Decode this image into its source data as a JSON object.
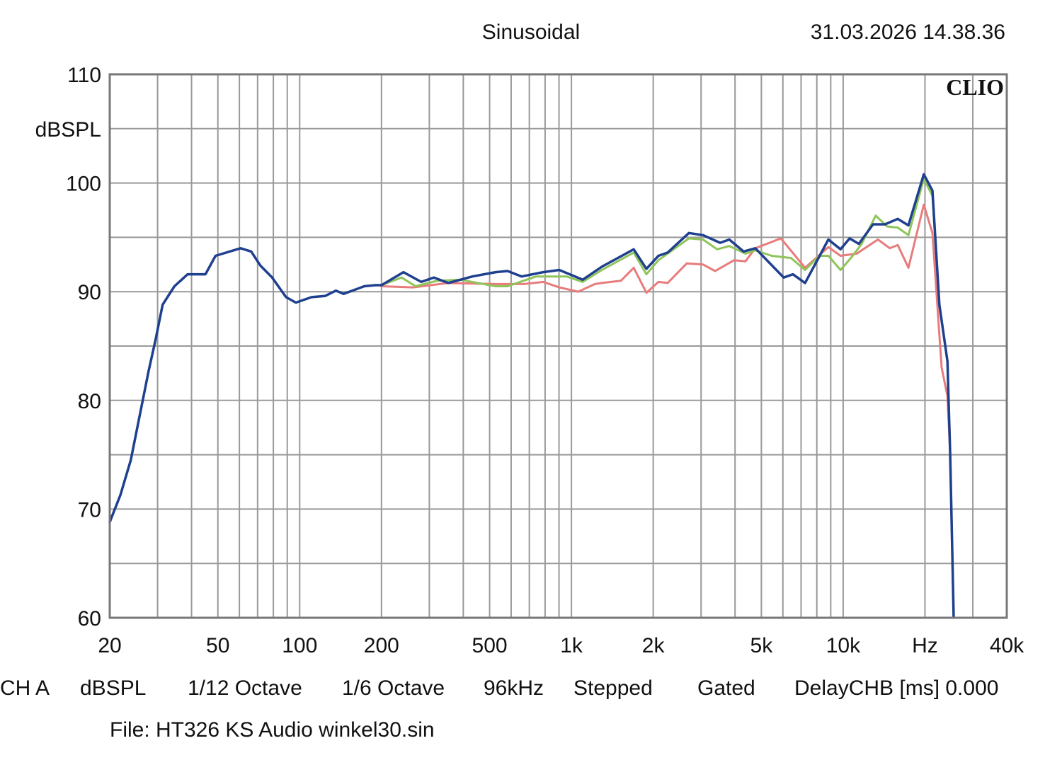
{
  "header": {
    "mode": "Sinusoidal",
    "timestamp": "31.03.2026 14.38.36",
    "logo": "CLIO"
  },
  "footer": {
    "settings": [
      "CH A",
      "dBSPL",
      "1/12 Octave",
      "1/6 Octave",
      "96kHz",
      "Stepped",
      "Gated",
      "DelayCHB [ms] 0.000"
    ],
    "file": "File: HT326 KS Audio winkel30.sin"
  },
  "chart_data": {
    "type": "line",
    "title": "",
    "xlabel": "Hz",
    "ylabel": "dBSPL",
    "xscale": "log",
    "xlim": [
      20,
      40000
    ],
    "ylim": [
      60,
      110
    ],
    "grid": true,
    "x_ticks": [
      {
        "value": 20,
        "label": "20"
      },
      {
        "value": 50,
        "label": "50"
      },
      {
        "value": 100,
        "label": "100"
      },
      {
        "value": 200,
        "label": "200"
      },
      {
        "value": 500,
        "label": "500"
      },
      {
        "value": 1000,
        "label": "1k"
      },
      {
        "value": 2000,
        "label": "2k"
      },
      {
        "value": 5000,
        "label": "5k"
      },
      {
        "value": 10000,
        "label": "10k"
      },
      {
        "value": 20000,
        "label": "Hz"
      },
      {
        "value": 40000,
        "label": "40k"
      }
    ],
    "y_ticks": [
      {
        "value": 110,
        "label": "110"
      },
      {
        "value": 105,
        "label": "dBSPL"
      },
      {
        "value": 100,
        "label": "100"
      },
      {
        "value": 90,
        "label": "90"
      },
      {
        "value": 80,
        "label": "80"
      },
      {
        "value": 70,
        "label": "70"
      },
      {
        "value": 60,
        "label": "60"
      }
    ],
    "series": [
      {
        "color": "#e87b7b",
        "points": [
          [
            200,
            90.5
          ],
          [
            261,
            90.4
          ],
          [
            352,
            90.8
          ],
          [
            526,
            90.7
          ],
          [
            668,
            90.7
          ],
          [
            787,
            90.9
          ],
          [
            902,
            90.4
          ],
          [
            1060,
            90.0
          ],
          [
            1220,
            90.7
          ],
          [
            1294,
            90.8
          ],
          [
            1520,
            91.0
          ],
          [
            1695,
            92.2
          ],
          [
            1888,
            89.9
          ],
          [
            2090,
            90.9
          ],
          [
            2260,
            90.8
          ],
          [
            2655,
            92.6
          ],
          [
            3050,
            92.5
          ],
          [
            3380,
            91.9
          ],
          [
            3970,
            92.9
          ],
          [
            4370,
            92.8
          ],
          [
            4750,
            94.0
          ],
          [
            5900,
            94.9
          ],
          [
            7240,
            92.2
          ],
          [
            8820,
            94.1
          ],
          [
            9780,
            93.3
          ],
          [
            11220,
            93.5
          ],
          [
            13420,
            94.8
          ],
          [
            14860,
            94.0
          ],
          [
            15880,
            94.3
          ],
          [
            17380,
            92.2
          ],
          [
            19800,
            98.0
          ],
          [
            21300,
            95.4
          ],
          [
            23040,
            83.0
          ],
          [
            24200,
            80.4
          ],
          [
            24760,
            75.2
          ],
          [
            25500,
            60.0
          ]
        ]
      },
      {
        "color": "#8fc45a",
        "points": [
          [
            200,
            90.6
          ],
          [
            237,
            91.3
          ],
          [
            267,
            90.5
          ],
          [
            320,
            91.0
          ],
          [
            390,
            91.1
          ],
          [
            526,
            90.5
          ],
          [
            582,
            90.5
          ],
          [
            741,
            91.4
          ],
          [
            960,
            91.4
          ],
          [
            1100,
            90.9
          ],
          [
            1294,
            92.0
          ],
          [
            1695,
            93.6
          ],
          [
            1888,
            91.6
          ],
          [
            2090,
            92.9
          ],
          [
            2705,
            94.9
          ],
          [
            3050,
            94.8
          ],
          [
            3440,
            93.9
          ],
          [
            3810,
            94.2
          ],
          [
            4370,
            93.5
          ],
          [
            4750,
            93.8
          ],
          [
            5460,
            93.3
          ],
          [
            6430,
            93.1
          ],
          [
            7240,
            92.0
          ],
          [
            8160,
            93.3
          ],
          [
            8820,
            93.3
          ],
          [
            9780,
            92.0
          ],
          [
            10760,
            93.2
          ],
          [
            11700,
            94.4
          ],
          [
            13180,
            97.0
          ],
          [
            14520,
            96.0
          ],
          [
            15880,
            95.9
          ],
          [
            17380,
            95.2
          ],
          [
            19800,
            100.4
          ],
          [
            21300,
            98.8
          ],
          [
            22600,
            88.8
          ],
          [
            24200,
            83.6
          ],
          [
            24760,
            75.2
          ],
          [
            25500,
            60.0
          ]
        ]
      },
      {
        "color": "#1f3f8f",
        "points": [
          [
            20,
            68.8
          ],
          [
            21.9,
            71.3
          ],
          [
            23.9,
            74.5
          ],
          [
            27.8,
            82.7
          ],
          [
            29.5,
            85.6
          ],
          [
            31.3,
            88.8
          ],
          [
            34.6,
            90.5
          ],
          [
            38.7,
            91.6
          ],
          [
            45,
            91.6
          ],
          [
            49,
            93.3
          ],
          [
            60.6,
            94.0
          ],
          [
            66.3,
            93.7
          ],
          [
            71.7,
            92.4
          ],
          [
            79.2,
            91.3
          ],
          [
            89.1,
            89.5
          ],
          [
            96.8,
            89.0
          ],
          [
            110.6,
            89.5
          ],
          [
            124,
            89.6
          ],
          [
            136,
            90.1
          ],
          [
            145,
            89.8
          ],
          [
            173,
            90.5
          ],
          [
            190,
            90.6
          ],
          [
            200,
            90.6
          ],
          [
            241,
            91.8
          ],
          [
            280,
            90.9
          ],
          [
            312,
            91.3
          ],
          [
            352,
            90.8
          ],
          [
            432,
            91.4
          ],
          [
            526,
            91.8
          ],
          [
            582,
            91.9
          ],
          [
            656,
            91.4
          ],
          [
            787,
            91.8
          ],
          [
            902,
            92.0
          ],
          [
            1100,
            91.1
          ],
          [
            1294,
            92.3
          ],
          [
            1695,
            93.9
          ],
          [
            1888,
            92.1
          ],
          [
            2090,
            93.3
          ],
          [
            2260,
            93.6
          ],
          [
            2705,
            95.4
          ],
          [
            3050,
            95.2
          ],
          [
            3525,
            94.5
          ],
          [
            3810,
            94.8
          ],
          [
            4300,
            93.7
          ],
          [
            4750,
            94.0
          ],
          [
            6040,
            91.3
          ],
          [
            6530,
            91.6
          ],
          [
            7240,
            90.8
          ],
          [
            8820,
            94.8
          ],
          [
            9780,
            93.9
          ],
          [
            10560,
            94.9
          ],
          [
            11420,
            94.4
          ],
          [
            12880,
            96.2
          ],
          [
            14260,
            96.2
          ],
          [
            15880,
            96.7
          ],
          [
            17380,
            96.1
          ],
          [
            19800,
            100.8
          ],
          [
            21300,
            99.3
          ],
          [
            22600,
            88.8
          ],
          [
            24200,
            83.6
          ],
          [
            24760,
            75.2
          ],
          [
            25500,
            60.0
          ]
        ]
      }
    ]
  }
}
